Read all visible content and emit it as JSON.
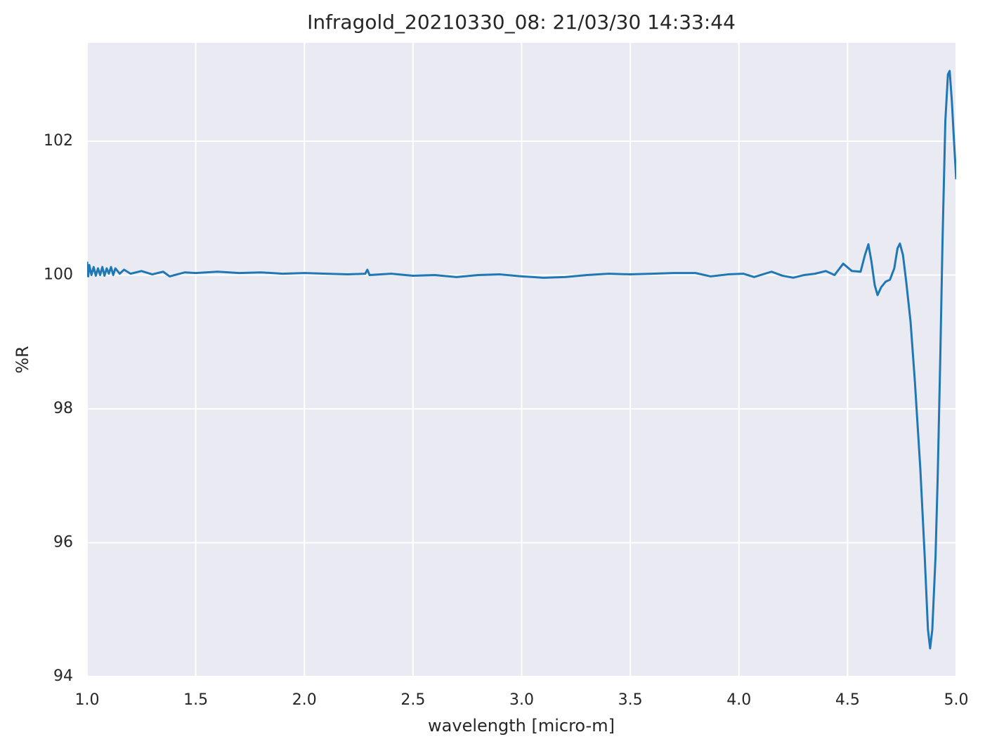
{
  "chart_data": {
    "type": "line",
    "title": "Infragold_20210330_08:  21/03/30 14:33:44",
    "x_label": "wavelength [micro-m]",
    "y_label": "%R",
    "grid": true,
    "xlim": [
      1.0,
      5.0
    ],
    "ylim": [
      94,
      103.47
    ],
    "xticks": [
      {
        "value": 1.0,
        "label": "1.0"
      },
      1.5,
      {
        "value": 2.0,
        "label": "2.0"
      },
      2.5,
      {
        "value": 3.0,
        "label": "3.0"
      },
      3.5,
      {
        "value": 4.0,
        "label": "4.0"
      },
      4.5,
      {
        "value": 5.0,
        "label": "5.0"
      }
    ],
    "yticks": [
      94,
      96,
      98,
      100,
      102
    ],
    "x": [
      1.0,
      1.005,
      1.01,
      1.02,
      1.03,
      1.04,
      1.05,
      1.06,
      1.07,
      1.08,
      1.09,
      1.1,
      1.11,
      1.12,
      1.13,
      1.15,
      1.17,
      1.2,
      1.25,
      1.3,
      1.35,
      1.38,
      1.45,
      1.5,
      1.6,
      1.7,
      1.8,
      1.9,
      2.0,
      2.1,
      2.2,
      2.28,
      2.29,
      2.3,
      2.4,
      2.5,
      2.6,
      2.7,
      2.8,
      2.9,
      3.0,
      3.1,
      3.2,
      3.3,
      3.4,
      3.5,
      3.6,
      3.7,
      3.8,
      3.87,
      3.95,
      4.02,
      4.07,
      4.15,
      4.2,
      4.25,
      4.3,
      4.35,
      4.4,
      4.44,
      4.48,
      4.52,
      4.56,
      4.58,
      4.596,
      4.61,
      4.625,
      4.638,
      4.655,
      4.675,
      4.695,
      4.715,
      4.73,
      4.741,
      4.755,
      4.77,
      4.79,
      4.81,
      4.835,
      4.855,
      4.87,
      4.88,
      4.89,
      4.905,
      4.915,
      4.927,
      4.937,
      4.95,
      4.962,
      4.97,
      4.98,
      4.99,
      5.0
    ],
    "series": [
      {
        "color": "#1f77b4",
        "values": [
          100.2,
          99.98,
          100.15,
          100.0,
          100.12,
          99.99,
          100.1,
          100.0,
          100.12,
          99.99,
          100.1,
          100.02,
          100.12,
          100.0,
          100.1,
          100.02,
          100.08,
          100.02,
          100.06,
          100.01,
          100.05,
          99.98,
          100.04,
          100.03,
          100.05,
          100.03,
          100.04,
          100.02,
          100.03,
          100.02,
          100.01,
          100.02,
          100.08,
          100.0,
          100.02,
          99.99,
          100.0,
          99.97,
          100.0,
          100.01,
          99.98,
          99.96,
          99.97,
          100.0,
          100.02,
          100.01,
          100.02,
          100.03,
          100.03,
          99.98,
          100.01,
          100.02,
          99.97,
          100.05,
          99.99,
          99.96,
          100.0,
          100.02,
          100.06,
          100.0,
          100.17,
          100.06,
          100.05,
          100.3,
          100.46,
          100.2,
          99.85,
          99.7,
          99.82,
          99.9,
          99.93,
          100.1,
          100.4,
          100.47,
          100.3,
          99.9,
          99.3,
          98.4,
          97.1,
          95.8,
          94.7,
          94.42,
          94.7,
          95.8,
          97.0,
          98.8,
          100.5,
          102.3,
          103.0,
          103.05,
          102.6,
          102.0,
          101.43
        ]
      }
    ]
  }
}
